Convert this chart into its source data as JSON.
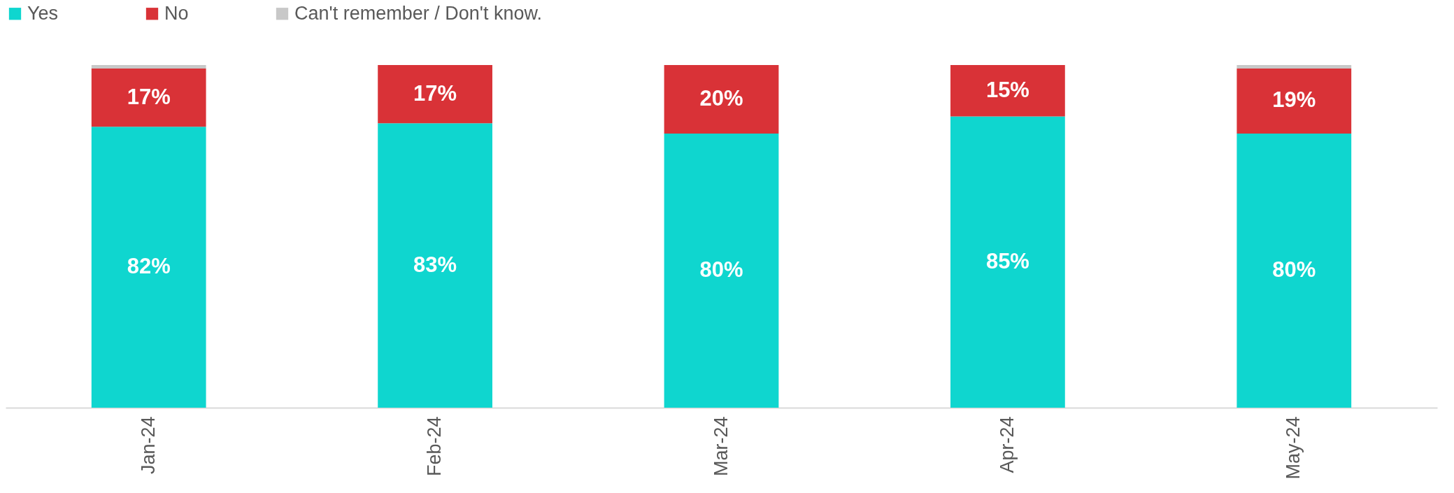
{
  "chart_data": {
    "type": "bar",
    "stacked": true,
    "legend": "top",
    "categories": [
      "Jan-24",
      "Feb-24",
      "Mar-24",
      "Apr-24",
      "May-24"
    ],
    "series": [
      {
        "name": "Yes",
        "color": "#0fd6cf",
        "values": [
          82,
          83,
          80,
          85,
          80
        ],
        "value_labels": [
          "82%",
          "83%",
          "80%",
          "85%",
          "80%"
        ]
      },
      {
        "name": "No",
        "color": "#d93237",
        "values": [
          17,
          17,
          20,
          15,
          19
        ],
        "value_labels": [
          "17%",
          "17%",
          "20%",
          "15%",
          "19%"
        ]
      },
      {
        "name": "Can't remember / Don't know.",
        "color": "#c8c8c8",
        "values": [
          1,
          0,
          0,
          0,
          1
        ],
        "value_labels": [
          null,
          null,
          null,
          null,
          null
        ]
      }
    ]
  }
}
